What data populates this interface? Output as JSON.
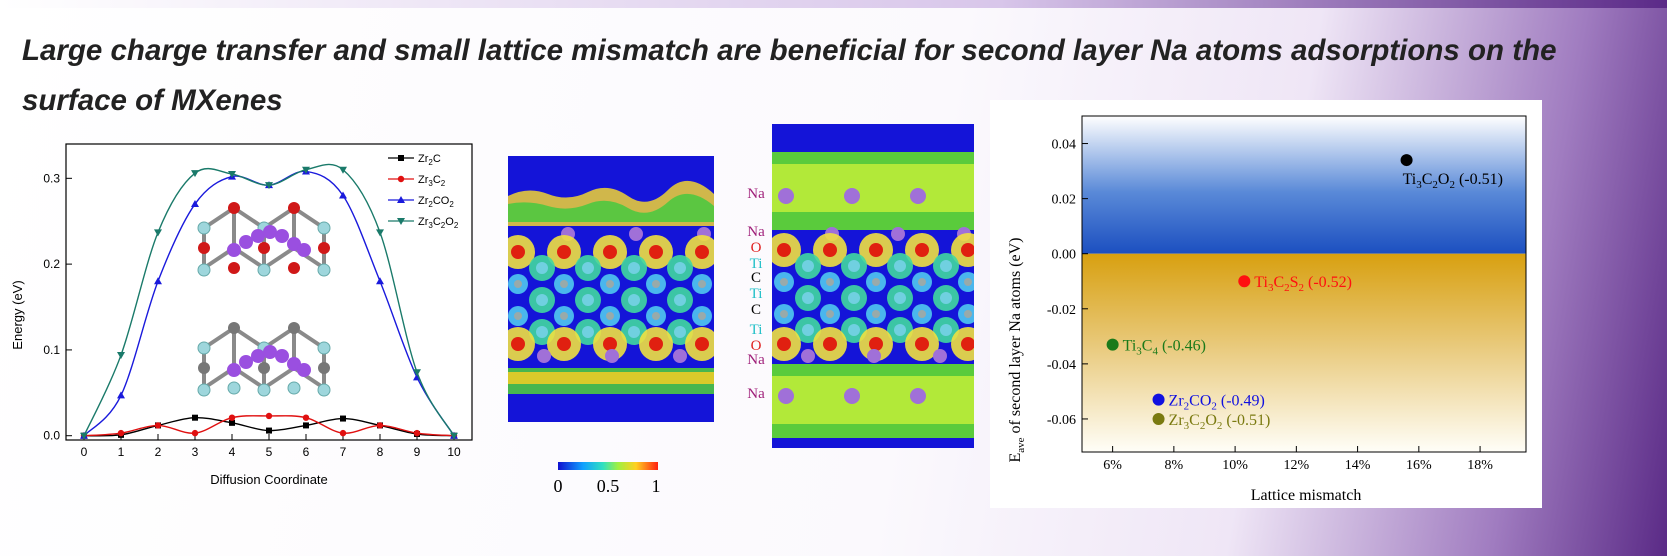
{
  "title": "Large charge transfer and small lattice mismatch are beneficial for second layer Na atoms adsorptions on the surface of MXenes",
  "colors": {
    "zr2c": "#000000",
    "zr3c2": "#e01010",
    "zr2co2": "#1a1adc",
    "zr3c2o2": "#1a7a6a",
    "na": "#a0207a",
    "o": "#e02020",
    "ti": "#20c0c8",
    "c": "#000000"
  },
  "energy_chart": {
    "ylabel": "Energy (eV)",
    "xlabel": "Diffusion Coordinate",
    "legend": [
      {
        "base": "Zr",
        "sub1": "2",
        "mid": "C",
        "sub2": "",
        "tail": "",
        "sub3": ""
      },
      {
        "base": "Zr",
        "sub1": "3",
        "mid": "C",
        "sub2": "2",
        "tail": "",
        "sub3": ""
      },
      {
        "base": "Zr",
        "sub1": "2",
        "mid": "CO",
        "sub2": "2",
        "tail": "",
        "sub3": ""
      },
      {
        "base": "Zr",
        "sub1": "3",
        "mid": "C",
        "sub2": "2",
        "tail": "O",
        "sub3": "2"
      }
    ]
  },
  "density_map": {
    "colorbar_ticks": [
      "0",
      "0.5",
      "1"
    ],
    "labels": [
      {
        "text": "Na",
        "color": "na"
      },
      {
        "text": "Na",
        "color": "na"
      },
      {
        "text": "O",
        "color": "o"
      },
      {
        "text": "Ti",
        "color": "ti"
      },
      {
        "text": "C",
        "color": "c"
      },
      {
        "text": "Ti",
        "color": "ti"
      },
      {
        "text": "C",
        "color": "c"
      },
      {
        "text": "Ti",
        "color": "ti"
      },
      {
        "text": "O",
        "color": "o"
      },
      {
        "text": "Na",
        "color": "na"
      },
      {
        "text": "Na",
        "color": "na"
      }
    ]
  },
  "chart_data": [
    {
      "type": "line",
      "title": "",
      "xlabel": "Diffusion Coordinate",
      "ylabel": "Energy (eV)",
      "x": [
        0,
        1,
        2,
        3,
        4,
        5,
        6,
        7,
        8,
        9,
        10
      ],
      "xlim": [
        0,
        10
      ],
      "ylim": [
        -0.005,
        0.34
      ],
      "yticks": [
        "0.0",
        "0.1",
        "0.2",
        "0.3"
      ],
      "xticks": [
        "0",
        "1",
        "2",
        "3",
        "4",
        "5",
        "6",
        "7",
        "8",
        "9",
        "10"
      ],
      "series": [
        {
          "name": "Zr2C",
          "color": "#000000",
          "marker": "square",
          "values": [
            0.0,
            0.001,
            0.012,
            0.021,
            0.015,
            0.006,
            0.012,
            0.02,
            0.012,
            0.002,
            0.0
          ]
        },
        {
          "name": "Zr3C2",
          "color": "#e01010",
          "marker": "circle",
          "values": [
            0.0,
            0.003,
            0.012,
            0.003,
            0.021,
            0.023,
            0.021,
            0.003,
            0.012,
            0.003,
            0.0
          ]
        },
        {
          "name": "Zr2CO2",
          "color": "#1a1adc",
          "marker": "triangle-up",
          "values": [
            0.0,
            0.047,
            0.18,
            0.27,
            0.302,
            0.292,
            0.308,
            0.28,
            0.18,
            0.068,
            0.0
          ]
        },
        {
          "name": "Zr3C2O2",
          "color": "#1a7a6a",
          "marker": "triangle-down",
          "values": [
            0.0,
            0.094,
            0.237,
            0.306,
            0.305,
            0.292,
            0.31,
            0.31,
            0.237,
            0.074,
            0.0
          ]
        }
      ]
    },
    {
      "type": "scatter",
      "title": "",
      "xlabel": "Lattice mismatch",
      "ylabel_main": "E",
      "ylabel_sub": "ave",
      "ylabel_rest": " of second layer Na atoms (eV)",
      "xlim": [
        5,
        19.5
      ],
      "ylim": [
        -0.072,
        0.05
      ],
      "xticks": [
        "6%",
        "8%",
        "10%",
        "12%",
        "14%",
        "16%",
        "18%"
      ],
      "yticks": [
        "0.04",
        "0.02",
        "0.00",
        "-0.02",
        "-0.04",
        "-0.06"
      ],
      "points": [
        {
          "x": 15.6,
          "y": 0.034,
          "color": "#000000",
          "label": {
            "a": "Ti",
            "s1": "3",
            "b": "C",
            "s2": "2",
            "c": "O",
            "s3": "2",
            "rest": " (-0.51)"
          }
        },
        {
          "x": 10.3,
          "y": -0.01,
          "color": "#ff1010",
          "label": {
            "a": "Ti",
            "s1": "3",
            "b": "C",
            "s2": "2",
            "c": "S",
            "s3": "2",
            "rest": " (-0.52)"
          }
        },
        {
          "x": 6.0,
          "y": -0.033,
          "color": "#1a7a1a",
          "label": {
            "a": "Ti",
            "s1": "3",
            "b": "C",
            "s2": "4",
            "c": "",
            "s3": "",
            "rest": " (-0.46)"
          }
        },
        {
          "x": 7.5,
          "y": -0.053,
          "color": "#1010e0",
          "label": {
            "a": "Zr",
            "s1": "2",
            "b": "CO",
            "s2": "2",
            "c": "",
            "s3": "",
            "rest": " (-0.49)"
          }
        },
        {
          "x": 7.5,
          "y": -0.06,
          "color": "#7a7a10",
          "label": {
            "a": "Zr",
            "s1": "3",
            "b": "C",
            "s2": "2",
            "c": "O",
            "s3": "2",
            "rest": " (-0.51)"
          }
        }
      ]
    }
  ]
}
